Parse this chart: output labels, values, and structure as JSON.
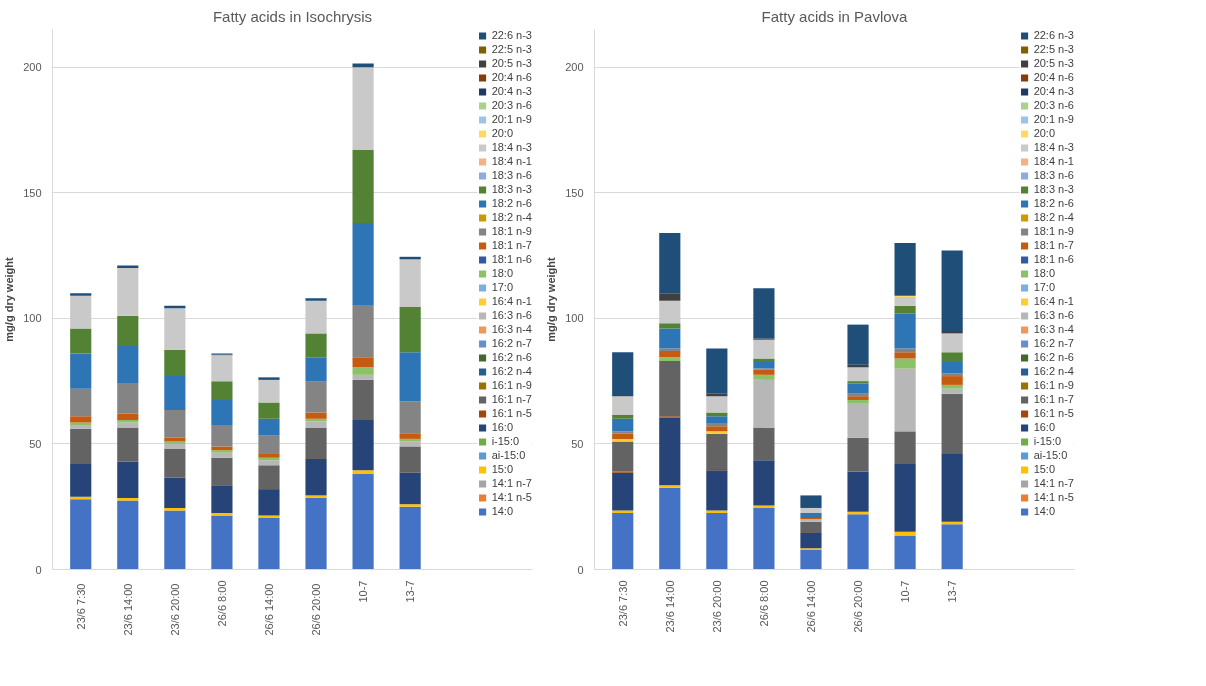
{
  "chart_data": [
    {
      "type": "bar",
      "stacked": true,
      "title": "Fatty acids in Isochrysis",
      "ylabel": "mg/g dry weight",
      "categories": [
        "23/6  7:30",
        "23/6  14:00",
        "23/6  20:00",
        "26/6 8:00",
        "26/6  14:00",
        "26/6  20:00",
        "10-7",
        "13-7"
      ],
      "ylim": [
        0,
        215
      ],
      "yticks": [
        0,
        50,
        100,
        150,
        200
      ],
      "grid": "y",
      "legend": "right",
      "series": [
        {
          "name": "14:0",
          "color": "#4472c4",
          "values": [
            28,
            27.5,
            23.5,
            21.5,
            20.5,
            28.5,
            38,
            25
          ]
        },
        {
          "name": "14:1 n-5",
          "color": "#ed7d31",
          "values": [
            null,
            null,
            null,
            null,
            null,
            null,
            null,
            null
          ]
        },
        {
          "name": "14:1 n-7",
          "color": "#a5a5a5",
          "values": [
            null,
            null,
            null,
            null,
            null,
            null,
            null,
            null
          ]
        },
        {
          "name": "15:0",
          "color": "#ffc000",
          "values": [
            1,
            1,
            1,
            1,
            1,
            1,
            1.5,
            1
          ]
        },
        {
          "name": "ai-15:0",
          "color": "#5b9bd5",
          "values": [
            null,
            null,
            null,
            null,
            null,
            null,
            null,
            null
          ]
        },
        {
          "name": "i-15:0",
          "color": "#70ad47",
          "values": [
            null,
            null,
            null,
            null,
            null,
            null,
            null,
            null
          ]
        },
        {
          "name": "16:0",
          "color": "#264478",
          "values": [
            13,
            14.5,
            12,
            11,
            10.5,
            14.5,
            20,
            12.5
          ]
        },
        {
          "name": "16:1 n-5",
          "color": "#9e480e",
          "values": [
            null,
            null,
            null,
            null,
            null,
            null,
            null,
            null
          ]
        },
        {
          "name": "16:1 n-7",
          "color": "#636363",
          "values": [
            14,
            13.5,
            11.5,
            11,
            9.5,
            12.5,
            16,
            10.5
          ]
        },
        {
          "name": "16:1 n-9",
          "color": "#997300",
          "values": [
            null,
            null,
            null,
            null,
            null,
            null,
            null,
            null
          ]
        },
        {
          "name": "16:2 n-4",
          "color": "#255e91",
          "values": [
            null,
            null,
            null,
            null,
            null,
            null,
            null,
            null
          ]
        },
        {
          "name": "16:2 n-6",
          "color": "#43682b",
          "values": [
            null,
            null,
            null,
            null,
            null,
            null,
            null,
            null
          ]
        },
        {
          "name": "16:2 n-7",
          "color": "#698ed0",
          "values": [
            null,
            null,
            null,
            null,
            null,
            null,
            null,
            null
          ]
        },
        {
          "name": "16:3 n-4",
          "color": "#f1975a",
          "values": [
            null,
            null,
            null,
            null,
            null,
            null,
            null,
            null
          ]
        },
        {
          "name": "16:3 n-6",
          "color": "#b7b7b7",
          "values": [
            1.5,
            2,
            2,
            2,
            2,
            2.5,
            2,
            2
          ]
        },
        {
          "name": "16:4 n-1",
          "color": "#ffcd33",
          "values": [
            null,
            null,
            null,
            null,
            null,
            null,
            null,
            null
          ]
        },
        {
          "name": "17:0",
          "color": "#7cafdd",
          "values": [
            null,
            null,
            null,
            null,
            null,
            null,
            null,
            null
          ]
        },
        {
          "name": "18:0",
          "color": "#8cc168",
          "values": [
            1,
            1,
            1,
            1,
            1,
            1,
            3,
            1
          ]
        },
        {
          "name": "18:1 n-6",
          "color": "#335aa1",
          "values": [
            null,
            null,
            null,
            null,
            null,
            null,
            null,
            null
          ]
        },
        {
          "name": "18:1 n-7",
          "color": "#c55a11",
          "values": [
            2.5,
            2.5,
            1.5,
            1.5,
            1.5,
            2.5,
            4,
            2
          ]
        },
        {
          "name": "18:1 n-9",
          "color": "#848484",
          "values": [
            11,
            12,
            11,
            8.5,
            7.5,
            12.5,
            20.5,
            13
          ]
        },
        {
          "name": "18:2 n-4",
          "color": "#cc9a00",
          "values": [
            null,
            null,
            null,
            null,
            null,
            null,
            null,
            null
          ]
        },
        {
          "name": "18:2 n-6",
          "color": "#2e75b6",
          "values": [
            14,
            15,
            13.5,
            10,
            6.5,
            9.5,
            33,
            19.5
          ]
        },
        {
          "name": "18:3 n-3",
          "color": "#548235",
          "values": [
            10,
            12,
            10.5,
            7.5,
            6.5,
            9.5,
            29,
            18
          ]
        },
        {
          "name": "18:3 n-6",
          "color": "#8faadc",
          "values": [
            null,
            null,
            null,
            null,
            null,
            null,
            null,
            null
          ]
        },
        {
          "name": "18:4 n-1",
          "color": "#f4b183",
          "values": [
            null,
            null,
            null,
            null,
            null,
            null,
            null,
            null
          ]
        },
        {
          "name": "18:4 n-3",
          "color": "#c9c9c9",
          "values": [
            13,
            19,
            16.5,
            10,
            9,
            13,
            33,
            19
          ]
        },
        {
          "name": "20:0",
          "color": "#ffd966",
          "values": [
            null,
            null,
            null,
            null,
            null,
            null,
            null,
            null
          ]
        },
        {
          "name": "20:1 n-9",
          "color": "#9dc3e6",
          "values": [
            null,
            null,
            null,
            0.5,
            null,
            null,
            null,
            null
          ]
        },
        {
          "name": "20:3 n-6",
          "color": "#a9d18e",
          "values": [
            null,
            null,
            null,
            null,
            null,
            null,
            null,
            null
          ]
        },
        {
          "name": "20:4 n-3",
          "color": "#203864",
          "values": [
            null,
            null,
            null,
            null,
            null,
            null,
            null,
            null
          ]
        },
        {
          "name": "20:4 n-6",
          "color": "#843c0c",
          "values": [
            null,
            null,
            null,
            null,
            null,
            null,
            null,
            null
          ]
        },
        {
          "name": "20:5 n-3",
          "color": "#404040",
          "values": [
            null,
            null,
            null,
            null,
            null,
            null,
            null,
            null
          ]
        },
        {
          "name": "22:5 n-3",
          "color": "#7f6000",
          "values": [
            null,
            null,
            null,
            null,
            null,
            null,
            null,
            null
          ]
        },
        {
          "name": "22:6 n-3",
          "color": "#1f4e79",
          "values": [
            1,
            1,
            1,
            0.5,
            1,
            1,
            1.5,
            1
          ]
        }
      ]
    },
    {
      "type": "bar",
      "stacked": true,
      "title": "Fatty acids in Pavlova",
      "ylabel": "mg/g dry weight",
      "categories": [
        "23/6 7:30",
        "23/6 14:00",
        "23/6 20:00",
        "26/6 8:00",
        "26/6 14:00",
        "26/6 20:00",
        "10-7",
        "13-7"
      ],
      "ylim": [
        0,
        215
      ],
      "yticks": [
        0,
        50,
        100,
        150,
        200
      ],
      "grid": "y",
      "legend": "right",
      "series": [
        {
          "name": "14:0",
          "color": "#4472c4",
          "values": [
            22.5,
            32.5,
            22.5,
            24.5,
            8,
            22,
            13.5,
            18
          ]
        },
        {
          "name": "14:1 n-5",
          "color": "#ed7d31",
          "values": [
            null,
            null,
            null,
            null,
            null,
            null,
            null,
            null
          ]
        },
        {
          "name": "14:1 n-7",
          "color": "#a5a5a5",
          "values": [
            null,
            null,
            null,
            null,
            null,
            null,
            null,
            null
          ]
        },
        {
          "name": "15:0",
          "color": "#ffc000",
          "values": [
            1,
            1,
            1,
            1,
            0.5,
            1,
            1.5,
            1
          ]
        },
        {
          "name": "ai-15:0",
          "color": "#5b9bd5",
          "values": [
            null,
            null,
            null,
            null,
            null,
            null,
            null,
            null
          ]
        },
        {
          "name": "i-15:0",
          "color": "#70ad47",
          "values": [
            null,
            null,
            null,
            null,
            null,
            null,
            null,
            null
          ]
        },
        {
          "name": "16:0",
          "color": "#264478",
          "values": [
            15,
            27,
            16,
            18,
            6,
            16,
            27,
            27
          ]
        },
        {
          "name": "16:1 n-5",
          "color": "#9e480e",
          "values": [
            0.5,
            0.5,
            0.5,
            null,
            null,
            null,
            null,
            null
          ]
        },
        {
          "name": "16:1 n-7",
          "color": "#636363",
          "values": [
            12,
            22,
            14,
            13,
            4.5,
            13.5,
            13,
            24
          ]
        },
        {
          "name": "16:1 n-9",
          "color": "#997300",
          "values": [
            null,
            null,
            null,
            null,
            null,
            null,
            null,
            null
          ]
        },
        {
          "name": "16:2 n-4",
          "color": "#255e91",
          "values": [
            null,
            null,
            null,
            null,
            null,
            null,
            null,
            null
          ]
        },
        {
          "name": "16:2 n-6",
          "color": "#43682b",
          "values": [
            null,
            null,
            null,
            null,
            null,
            null,
            null,
            null
          ]
        },
        {
          "name": "16:2 n-7",
          "color": "#698ed0",
          "values": [
            null,
            null,
            null,
            null,
            null,
            null,
            null,
            null
          ]
        },
        {
          "name": "16:3 n-4",
          "color": "#f1975a",
          "values": [
            null,
            null,
            null,
            null,
            null,
            null,
            null,
            null
          ]
        },
        {
          "name": "16:3 n-6",
          "color": "#b7b7b7",
          "values": [
            null,
            null,
            null,
            19,
            1,
            13.5,
            25,
            2
          ]
        },
        {
          "name": "16:4 n-1",
          "color": "#ffcd33",
          "values": [
            1,
            null,
            1,
            null,
            null,
            null,
            null,
            null
          ]
        },
        {
          "name": "17:0",
          "color": "#7cafdd",
          "values": [
            null,
            null,
            null,
            null,
            null,
            null,
            null,
            null
          ]
        },
        {
          "name": "18:0",
          "color": "#8cc168",
          "values": [
            null,
            1.5,
            null,
            2,
            null,
            1.5,
            4,
            1.5
          ]
        },
        {
          "name": "18:1 n-6",
          "color": "#335aa1",
          "values": [
            null,
            null,
            null,
            null,
            null,
            null,
            null,
            null
          ]
        },
        {
          "name": "18:1 n-7",
          "color": "#c55a11",
          "values": [
            2,
            2.5,
            2,
            2,
            0.5,
            1.5,
            2.5,
            3.5
          ]
        },
        {
          "name": "18:1 n-9",
          "color": "#848484",
          "values": [
            1,
            1,
            1,
            0.5,
            null,
            1,
            1.5,
            1
          ]
        },
        {
          "name": "18:2 n-4",
          "color": "#cc9a00",
          "values": [
            null,
            null,
            null,
            null,
            null,
            null,
            null,
            null
          ]
        },
        {
          "name": "18:2 n-6",
          "color": "#2e75b6",
          "values": [
            5,
            8,
            3,
            3,
            2,
            4,
            14,
            5
          ]
        },
        {
          "name": "18:3 n-3",
          "color": "#548235",
          "values": [
            1.5,
            2,
            1.5,
            1,
            null,
            1,
            3,
            3.5
          ]
        },
        {
          "name": "18:3 n-6",
          "color": "#8faadc",
          "values": [
            null,
            null,
            null,
            null,
            null,
            null,
            null,
            null
          ]
        },
        {
          "name": "18:4 n-1",
          "color": "#f4b183",
          "values": [
            null,
            null,
            null,
            null,
            null,
            null,
            null,
            null
          ]
        },
        {
          "name": "18:4 n-3",
          "color": "#c9c9c9",
          "values": [
            7.5,
            9,
            6.5,
            7.5,
            2,
            5.5,
            3.5,
            7.5
          ]
        },
        {
          "name": "20:0",
          "color": "#ffd966",
          "values": [
            null,
            null,
            null,
            null,
            null,
            null,
            0.5,
            null
          ]
        },
        {
          "name": "20:1 n-9",
          "color": "#9dc3e6",
          "values": [
            null,
            null,
            null,
            null,
            null,
            null,
            null,
            null
          ]
        },
        {
          "name": "20:3 n-6",
          "color": "#a9d18e",
          "values": [
            null,
            null,
            null,
            null,
            null,
            null,
            null,
            null
          ]
        },
        {
          "name": "20:4 n-3",
          "color": "#203864",
          "values": [
            null,
            null,
            null,
            null,
            null,
            null,
            null,
            null
          ]
        },
        {
          "name": "20:4 n-6",
          "color": "#843c0c",
          "values": [
            null,
            null,
            null,
            null,
            null,
            null,
            null,
            null
          ]
        },
        {
          "name": "20:5 n-3",
          "color": "#404040",
          "values": [
            0.5,
            3,
            1,
            0.5,
            null,
            1,
            null,
            1
          ]
        },
        {
          "name": "22:5 n-3",
          "color": "#7f6000",
          "values": [
            null,
            null,
            null,
            null,
            null,
            null,
            null,
            null
          ]
        },
        {
          "name": "22:6 n-3",
          "color": "#1f4e79",
          "values": [
            17,
            24,
            18,
            20,
            5,
            16,
            21,
            32
          ]
        }
      ]
    }
  ]
}
